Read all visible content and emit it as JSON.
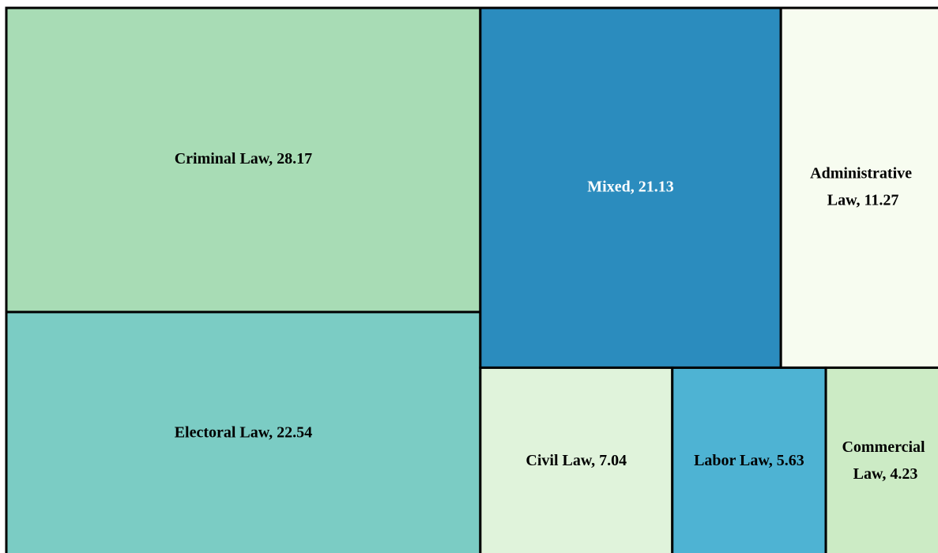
{
  "chart_data": {
    "type": "treemap",
    "values": [
      28.17,
      22.54,
      21.13,
      11.27,
      7.04,
      5.63,
      4.23
    ],
    "value_labels": [
      "Criminal Law, 28.17",
      "Electoral Law, 22.54",
      "Mixed, 21.13",
      "Administrative Law, 11.27",
      "Civil Law, 7.04",
      "Labor Law, 5.63",
      "Commercial Law, 4.23"
    ],
    "colors": [
      "#a8dcb5",
      "#7bccc4",
      "#2b8cbe",
      "#f7fcf0",
      "#e0f3db",
      "#4eb3d3",
      "#ccebc5"
    ]
  }
}
